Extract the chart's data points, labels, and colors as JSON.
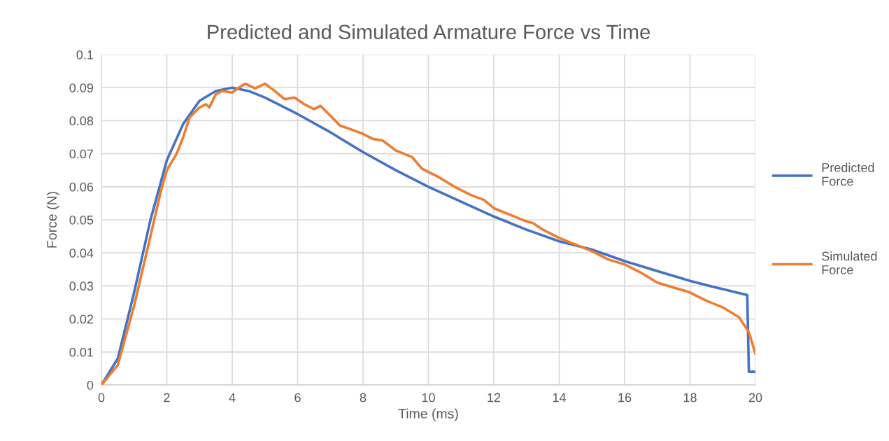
{
  "chart_data": {
    "type": "line",
    "title": "Predicted and Simulated Armature Force vs Time",
    "xlabel": "Time (ms)",
    "ylabel": "Force (N)",
    "xlim": [
      0,
      20
    ],
    "xticks": [
      0,
      2,
      4,
      6,
      8,
      10,
      12,
      14,
      16,
      18,
      20
    ],
    "ylim": [
      0,
      0.1
    ],
    "yticks": [
      0,
      0.01,
      0.02,
      0.03,
      0.04,
      0.05,
      0.06,
      0.07,
      0.08,
      0.09,
      0.1
    ],
    "grid": true,
    "legend": "right",
    "marker": "none",
    "line_style": "solid",
    "series": [
      {
        "name": "Predicted Force",
        "color": "#4472c4",
        "x": [
          0,
          0.5,
          1,
          1.5,
          2,
          2.5,
          3,
          3.5,
          4,
          4.5,
          5,
          6,
          7,
          8,
          9,
          10,
          11,
          12,
          13,
          14,
          15,
          16,
          17,
          18,
          19,
          19.75,
          19.8,
          20
        ],
        "values": [
          0,
          0.008,
          0.028,
          0.05,
          0.068,
          0.079,
          0.086,
          0.089,
          0.09,
          0.089,
          0.087,
          0.082,
          0.0765,
          0.0705,
          0.065,
          0.06,
          0.0555,
          0.051,
          0.047,
          0.0435,
          0.041,
          0.0375,
          0.0345,
          0.0315,
          0.029,
          0.0272,
          0.004,
          0.004
        ]
      },
      {
        "name": "Simulated Force",
        "color": "#ed7d31",
        "x": [
          0,
          0.5,
          1,
          1.5,
          1.8,
          2,
          2.3,
          2.5,
          2.7,
          3,
          3.2,
          3.3,
          3.5,
          3.7,
          4,
          4.2,
          4.4,
          4.7,
          5.0,
          5.3,
          5.6,
          5.9,
          6.2,
          6.5,
          6.7,
          7,
          7.3,
          7.6,
          8,
          8.3,
          8.6,
          9,
          9.5,
          9.8,
          10,
          10.3,
          10.8,
          11.3,
          11.7,
          12,
          12.5,
          13,
          13.2,
          13.5,
          14,
          14.5,
          15,
          15.5,
          16,
          16.5,
          17,
          17.5,
          18,
          18.5,
          19,
          19.5,
          19.8,
          20
        ],
        "values": [
          0,
          0.006,
          0.024,
          0.045,
          0.058,
          0.065,
          0.07,
          0.075,
          0.081,
          0.084,
          0.085,
          0.084,
          0.088,
          0.089,
          0.0885,
          0.09,
          0.0912,
          0.0898,
          0.0912,
          0.089,
          0.0865,
          0.087,
          0.085,
          0.0835,
          0.0845,
          0.0815,
          0.0785,
          0.0775,
          0.076,
          0.0745,
          0.074,
          0.071,
          0.069,
          0.0655,
          0.0645,
          0.063,
          0.06,
          0.0575,
          0.056,
          0.0535,
          0.0515,
          0.0495,
          0.049,
          0.047,
          0.0445,
          0.0425,
          0.0405,
          0.038,
          0.0365,
          0.034,
          0.031,
          0.0295,
          0.028,
          0.0255,
          0.0235,
          0.0205,
          0.016,
          0.0095
        ]
      }
    ]
  }
}
